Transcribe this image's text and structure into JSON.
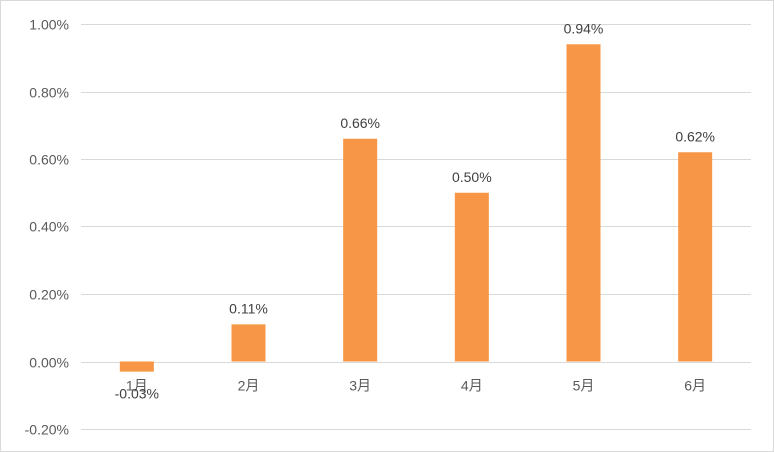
{
  "chart_data": {
    "type": "bar",
    "title": "",
    "xlabel": "",
    "ylabel": "",
    "categories": [
      "1月",
      "2月",
      "3月",
      "4月",
      "5月",
      "6月"
    ],
    "values": [
      -0.03,
      0.11,
      0.66,
      0.5,
      0.94,
      0.62
    ],
    "data_labels": [
      "-0.03%",
      "0.11%",
      "0.66%",
      "0.50%",
      "0.94%",
      "0.62%"
    ],
    "ylim": [
      -0.2,
      1.0
    ],
    "yticks": [
      -0.2,
      0.0,
      0.2,
      0.4,
      0.6,
      0.8,
      1.0
    ],
    "ytick_labels": [
      "-0.20%",
      "0.00%",
      "0.20%",
      "0.40%",
      "0.60%",
      "0.80%",
      "1.00%"
    ],
    "grid": true,
    "legend": "none",
    "bar_color": "#F79646"
  }
}
